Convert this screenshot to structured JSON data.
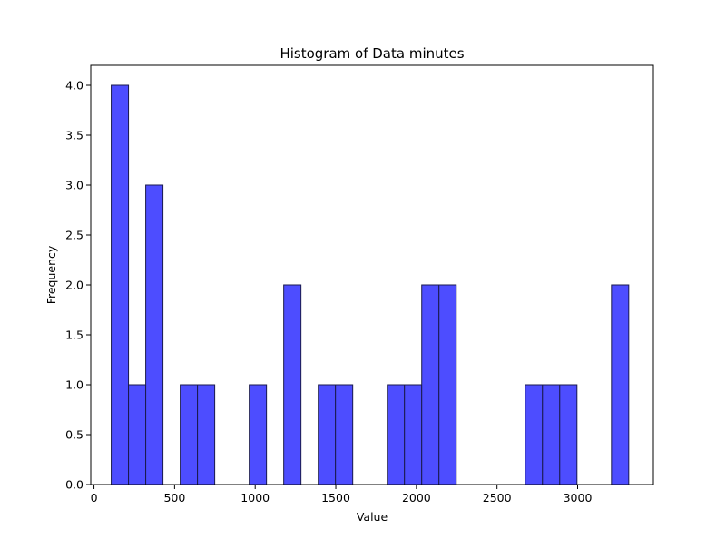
{
  "chart_data": {
    "type": "bar",
    "title": "Histogram of Data minutes",
    "xlabel": "Value",
    "ylabel": "Frequency",
    "xlim": [
      -20,
      3470
    ],
    "ylim": [
      0,
      4.2
    ],
    "xticks": [
      0,
      500,
      1000,
      1500,
      2000,
      2500,
      3000
    ],
    "xtick_labels": [
      "0",
      "500",
      "1000",
      "1500",
      "2000",
      "2500",
      "3000"
    ],
    "yticks": [
      0,
      0.5,
      1,
      1.5,
      2,
      2.5,
      3,
      3.5,
      4
    ],
    "ytick_labels": [
      "0.0",
      "0.5",
      "1.0",
      "1.5",
      "2.0",
      "2.5",
      "3.0",
      "3.5",
      "4.0"
    ],
    "grid": false,
    "bar_color": "#4d4dff",
    "edge_color": "#1a1a4d",
    "bin_width": 107,
    "bins": [
      {
        "start": 107,
        "count": 4
      },
      {
        "start": 214,
        "count": 1
      },
      {
        "start": 321,
        "count": 3
      },
      {
        "start": 428,
        "count": 0
      },
      {
        "start": 535,
        "count": 1
      },
      {
        "start": 642,
        "count": 1
      },
      {
        "start": 749,
        "count": 0
      },
      {
        "start": 856,
        "count": 0
      },
      {
        "start": 963,
        "count": 1
      },
      {
        "start": 1070,
        "count": 0
      },
      {
        "start": 1177,
        "count": 2
      },
      {
        "start": 1284,
        "count": 0
      },
      {
        "start": 1391,
        "count": 1
      },
      {
        "start": 1498,
        "count": 1
      },
      {
        "start": 1605,
        "count": 0
      },
      {
        "start": 1712,
        "count": 0
      },
      {
        "start": 1819,
        "count": 1
      },
      {
        "start": 1926,
        "count": 1
      },
      {
        "start": 2033,
        "count": 2
      },
      {
        "start": 2140,
        "count": 2
      },
      {
        "start": 2247,
        "count": 0
      },
      {
        "start": 2354,
        "count": 0
      },
      {
        "start": 2461,
        "count": 0
      },
      {
        "start": 2568,
        "count": 0
      },
      {
        "start": 2675,
        "count": 1
      },
      {
        "start": 2782,
        "count": 1
      },
      {
        "start": 2889,
        "count": 1
      },
      {
        "start": 2996,
        "count": 0
      },
      {
        "start": 3103,
        "count": 0
      },
      {
        "start": 3210,
        "count": 2
      }
    ]
  }
}
